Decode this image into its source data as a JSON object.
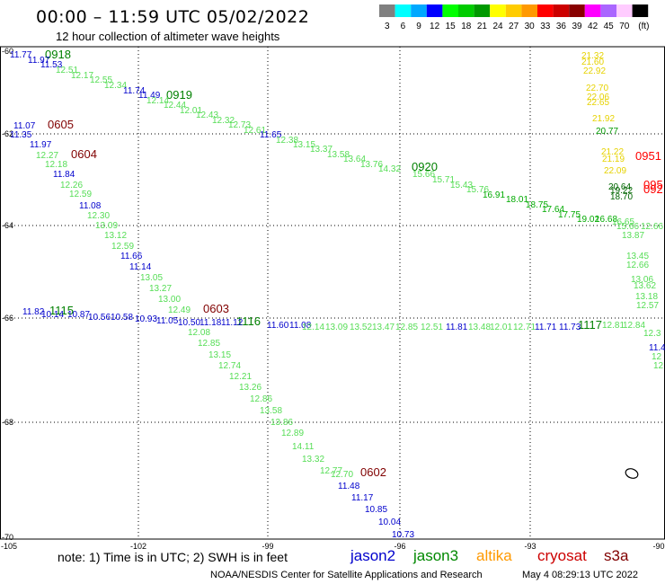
{
  "header": {
    "title": "00:00 – 11:59 UTC 05/02/2022",
    "subtitle": "12 hour collection of altimeter wave heights"
  },
  "color_scale": {
    "colors": [
      "#808080",
      "#00ffff",
      "#00a8ff",
      "#0000ff",
      "#00ff00",
      "#00cc00",
      "#009900",
      "#ffff00",
      "#ffcc00",
      "#ff9900",
      "#ff0000",
      "#cc0000",
      "#880000",
      "#ff00ff",
      "#aa66ff",
      "#ffccff",
      "#000000"
    ],
    "labels": [
      "3",
      "6",
      "9",
      "12",
      "15",
      "18",
      "21",
      "24",
      "27",
      "30",
      "33",
      "36",
      "39",
      "42",
      "45",
      "70",
      "(ft)"
    ]
  },
  "axes": {
    "x_labels": [
      "-105",
      "-102",
      "-99",
      "-96",
      "-93",
      "-90"
    ],
    "y_labels": [
      "-60",
      "-62",
      "-64",
      "-66",
      "-68",
      "-70"
    ]
  },
  "tracks": {
    "time_labels": [
      {
        "text": "0918",
        "color": "#008000"
      },
      {
        "text": "0919",
        "color": "#008000"
      },
      {
        "text": "0920",
        "color": "#008000"
      },
      {
        "text": "0605",
        "color": "#800000"
      },
      {
        "text": "0604",
        "color": "#800000"
      },
      {
        "text": "0603",
        "color": "#800000"
      },
      {
        "text": "0602",
        "color": "#800000"
      },
      {
        "text": "1115",
        "color": "#008000"
      },
      {
        "text": "1116",
        "color": "#008000"
      },
      {
        "text": "1117",
        "color": "#008000"
      },
      {
        "text": "0951",
        "color": "#ff0000"
      },
      {
        "text": "095",
        "color": "#ff0000"
      },
      {
        "text": "092",
        "color": "#ff0000"
      }
    ],
    "values": [
      {
        "text": "11.77",
        "color": "#0000cc"
      },
      {
        "text": "11.97",
        "color": "#0000cc"
      },
      {
        "text": "11.53",
        "color": "#0000cc"
      },
      {
        "text": "12.51",
        "color": "#55dd55"
      },
      {
        "text": "12.17",
        "color": "#55dd55"
      },
      {
        "text": "12.55",
        "color": "#55dd55"
      },
      {
        "text": "12.34",
        "color": "#55dd55"
      },
      {
        "text": "11.74",
        "color": "#0000cc"
      },
      {
        "text": "11.49",
        "color": "#0000cc"
      },
      {
        "text": "12.14",
        "color": "#55dd55"
      },
      {
        "text": "12.44",
        "color": "#55dd55"
      },
      {
        "text": "12.01",
        "color": "#55dd55"
      },
      {
        "text": "12.43",
        "color": "#55dd55"
      },
      {
        "text": "12.32",
        "color": "#55dd55"
      },
      {
        "text": "12.73",
        "color": "#55dd55"
      },
      {
        "text": "12.61",
        "color": "#55dd55"
      },
      {
        "text": "11.65",
        "color": "#0000cc"
      },
      {
        "text": "12.38",
        "color": "#55dd55"
      },
      {
        "text": "13.15",
        "color": "#55dd55"
      },
      {
        "text": "13.37",
        "color": "#55dd55"
      },
      {
        "text": "13.58",
        "color": "#55dd55"
      },
      {
        "text": "13.64",
        "color": "#55dd55"
      },
      {
        "text": "13.76",
        "color": "#55dd55"
      },
      {
        "text": "14.32",
        "color": "#55dd55"
      },
      {
        "text": "15.66",
        "color": "#55dd55"
      },
      {
        "text": "15.71",
        "color": "#55dd55"
      },
      {
        "text": "15.43",
        "color": "#55dd55"
      },
      {
        "text": "15.76",
        "color": "#55dd55"
      },
      {
        "text": "16.91",
        "color": "#00aa00"
      },
      {
        "text": "18.01",
        "color": "#00aa00"
      },
      {
        "text": "18.75",
        "color": "#00aa00"
      },
      {
        "text": "17.64",
        "color": "#00aa00"
      },
      {
        "text": "17.75",
        "color": "#00aa00"
      },
      {
        "text": "19.02",
        "color": "#00aa00"
      },
      {
        "text": "16.68",
        "color": "#00aa00"
      },
      {
        "text": "16.65",
        "color": "#55dd55"
      },
      {
        "text": "15.66",
        "color": "#55dd55"
      },
      {
        "text": "13.87",
        "color": "#55dd55"
      },
      {
        "text": "21.32",
        "color": "#e6d200"
      },
      {
        "text": "21.60",
        "color": "#e6d200"
      },
      {
        "text": "22.92",
        "color": "#e6d200"
      },
      {
        "text": "22.70",
        "color": "#e6d200"
      },
      {
        "text": "22.06",
        "color": "#e6d200"
      },
      {
        "text": "22.65",
        "color": "#e6d200"
      },
      {
        "text": "21.92",
        "color": "#e6d200"
      },
      {
        "text": "20.77",
        "color": "#009900"
      },
      {
        "text": "21.22",
        "color": "#e6d200"
      },
      {
        "text": "21.19",
        "color": "#e6d200"
      },
      {
        "text": "22.09",
        "color": "#e6d200"
      },
      {
        "text": "20.64",
        "color": "#006600"
      },
      {
        "text": "19.22",
        "color": "#006600"
      },
      {
        "text": "18.70",
        "color": "#006600"
      },
      {
        "text": "11.07",
        "color": "#0000cc"
      },
      {
        "text": "11.35",
        "color": "#0000cc"
      },
      {
        "text": "11.97",
        "color": "#0000cc"
      },
      {
        "text": "12.27",
        "color": "#55dd55"
      },
      {
        "text": "12.18",
        "color": "#55dd55"
      },
      {
        "text": "11.84",
        "color": "#0000cc"
      },
      {
        "text": "12.26",
        "color": "#55dd55"
      },
      {
        "text": "12.59",
        "color": "#55dd55"
      },
      {
        "text": "11.08",
        "color": "#0000cc"
      },
      {
        "text": "12.30",
        "color": "#55dd55"
      },
      {
        "text": "13.09",
        "color": "#55dd55"
      },
      {
        "text": "13.12",
        "color": "#55dd55"
      },
      {
        "text": "12.59",
        "color": "#55dd55"
      },
      {
        "text": "11.66",
        "color": "#0000cc"
      },
      {
        "text": "11.14",
        "color": "#0000cc"
      },
      {
        "text": "13.05",
        "color": "#55dd55"
      },
      {
        "text": "13.27",
        "color": "#55dd55"
      },
      {
        "text": "13.00",
        "color": "#55dd55"
      },
      {
        "text": "12.49",
        "color": "#55dd55"
      },
      {
        "text": "11.05",
        "color": "#0000cc"
      },
      {
        "text": "10.50",
        "color": "#0000cc"
      },
      {
        "text": "11.18",
        "color": "#0000cc"
      },
      {
        "text": "11.12",
        "color": "#0000cc"
      },
      {
        "text": "11.60",
        "color": "#0000cc"
      },
      {
        "text": "11.08",
        "color": "#0000cc"
      },
      {
        "text": "11.82",
        "color": "#0000cc"
      },
      {
        "text": "10.14",
        "color": "#0000cc"
      },
      {
        "text": "10.87",
        "color": "#0000cc"
      },
      {
        "text": "10.56",
        "color": "#0000cc"
      },
      {
        "text": "10.58",
        "color": "#0000cc"
      },
      {
        "text": "10.93",
        "color": "#0000cc"
      },
      {
        "text": "12.14",
        "color": "#55dd55"
      },
      {
        "text": "13.09",
        "color": "#55dd55"
      },
      {
        "text": "13.52",
        "color": "#55dd55"
      },
      {
        "text": "13.47",
        "color": "#55dd55"
      },
      {
        "text": "12.85",
        "color": "#55dd55"
      },
      {
        "text": "12.51",
        "color": "#55dd55"
      },
      {
        "text": "11.81",
        "color": "#0000cc"
      },
      {
        "text": "13.48",
        "color": "#55dd55"
      },
      {
        "text": "12.01",
        "color": "#55dd55"
      },
      {
        "text": "12.71",
        "color": "#55dd55"
      },
      {
        "text": "11.71",
        "color": "#0000cc"
      },
      {
        "text": "11.73",
        "color": "#0000cc"
      },
      {
        "text": "12.81",
        "color": "#55dd55"
      },
      {
        "text": "12.84",
        "color": "#55dd55"
      },
      {
        "text": "12.08",
        "color": "#55dd55"
      },
      {
        "text": "12.85",
        "color": "#55dd55"
      },
      {
        "text": "13.15",
        "color": "#55dd55"
      },
      {
        "text": "12.74",
        "color": "#55dd55"
      },
      {
        "text": "12.21",
        "color": "#55dd55"
      },
      {
        "text": "13.26",
        "color": "#55dd55"
      },
      {
        "text": "12.86",
        "color": "#55dd55"
      },
      {
        "text": "13.58",
        "color": "#55dd55"
      },
      {
        "text": "13.86",
        "color": "#55dd55"
      },
      {
        "text": "12.89",
        "color": "#55dd55"
      },
      {
        "text": "14.11",
        "color": "#55dd55"
      },
      {
        "text": "13.32",
        "color": "#55dd55"
      },
      {
        "text": "12.77",
        "color": "#55dd55"
      },
      {
        "text": "12.70",
        "color": "#55dd55"
      },
      {
        "text": "11.48",
        "color": "#0000cc"
      },
      {
        "text": "11.17",
        "color": "#0000cc"
      },
      {
        "text": "10.85",
        "color": "#0000cc"
      },
      {
        "text": "10.04",
        "color": "#0000cc"
      },
      {
        "text": "10.73",
        "color": "#0000cc"
      },
      {
        "text": "13.45",
        "color": "#55dd55"
      },
      {
        "text": "12.66",
        "color": "#55dd55"
      },
      {
        "text": "13.06",
        "color": "#55dd55"
      },
      {
        "text": "13.62",
        "color": "#55dd55"
      },
      {
        "text": "13.18",
        "color": "#55dd55"
      },
      {
        "text": "12.57",
        "color": "#55dd55"
      },
      {
        "text": "12.3",
        "color": "#55dd55"
      },
      {
        "text": "11.4",
        "color": "#0000cc"
      },
      {
        "text": "12",
        "color": "#55dd55"
      },
      {
        "text": "12",
        "color": "#55dd55"
      },
      {
        "text": "12.66",
        "color": "#55dd55"
      }
    ]
  },
  "footer": {
    "note": "note: 1) Time is in UTC; 2) SWH is in feet",
    "satellites": [
      {
        "name": "jason2",
        "color": "#0000cc"
      },
      {
        "name": "jason3",
        "color": "#008800"
      },
      {
        "name": "altika",
        "color": "#ff9900"
      },
      {
        "name": "cryosat",
        "color": "#cc0000"
      },
      {
        "name": "s3a",
        "color": "#800000"
      }
    ],
    "credit": "NOAA/NESDIS Center for Satellite Applications and Research",
    "timestamp": "May  4 08:29:13 UTC 2022"
  }
}
